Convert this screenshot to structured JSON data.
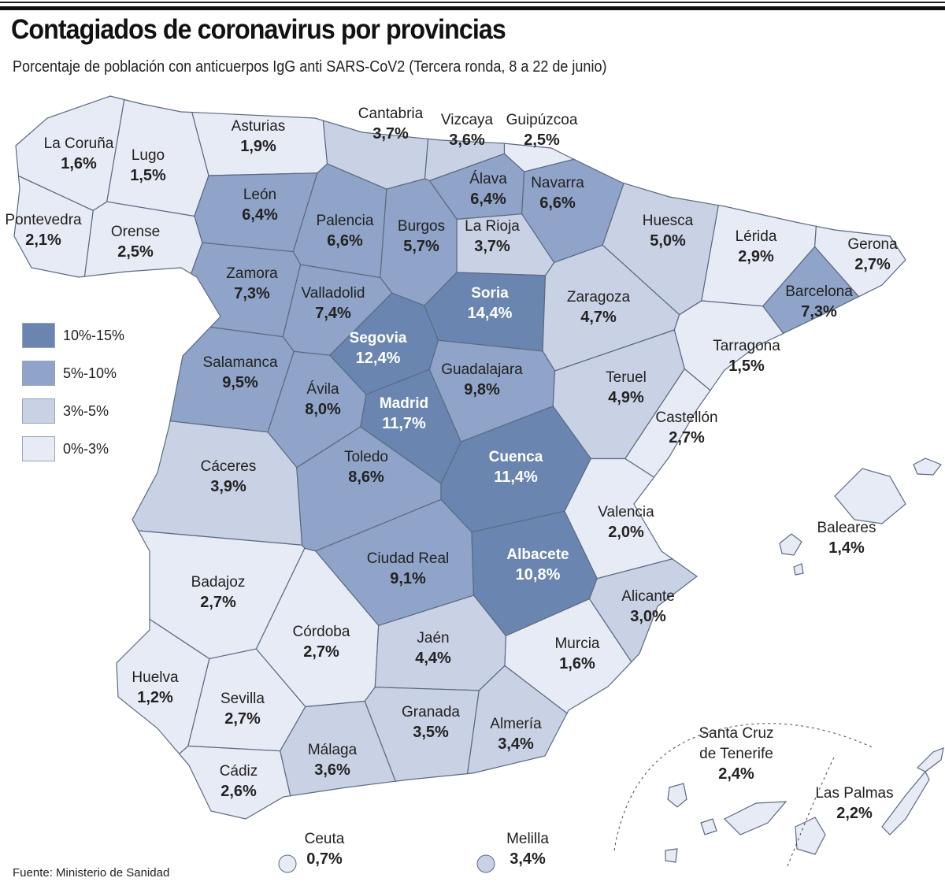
{
  "title": "Contagiados de coronavirus por provincias",
  "subtitle": "Porcentaje de población con anticuerpos IgG anti SARS-CoV2 (Tercera ronda, 8 a 22 de junio)",
  "source": "Fuente: Ministerio de Sanidad",
  "legend": [
    {
      "label": "10%-15%",
      "color": "#6a86b0"
    },
    {
      "label": "5%-10%",
      "color": "#8fa4c8"
    },
    {
      "label": "3%-5%",
      "color": "#c9d1e4"
    },
    {
      "label": "0%-3%",
      "color": "#e7ebf5"
    }
  ],
  "chart_data": {
    "type": "choropleth",
    "unit": "%",
    "provinces": [
      {
        "name": "La Coruña",
        "value": "1,6%",
        "class": 3
      },
      {
        "name": "Lugo",
        "value": "1,5%",
        "class": 3
      },
      {
        "name": "Asturias",
        "value": "1,9%",
        "class": 3
      },
      {
        "name": "Cantabria",
        "value": "3,7%",
        "class": 2
      },
      {
        "name": "Vizcaya",
        "value": "3,6%",
        "class": 2
      },
      {
        "name": "Guipúzcoa",
        "value": "2,5%",
        "class": 3
      },
      {
        "name": "Álava",
        "value": "6,4%",
        "class": 1
      },
      {
        "name": "Navarra",
        "value": "6,6%",
        "class": 1
      },
      {
        "name": "La Rioja",
        "value": "3,7%",
        "class": 2
      },
      {
        "name": "León",
        "value": "6,4%",
        "class": 1
      },
      {
        "name": "Palencia",
        "value": "6,6%",
        "class": 1
      },
      {
        "name": "Burgos",
        "value": "5,7%",
        "class": 1
      },
      {
        "name": "Pontevedra",
        "value": "2,1%",
        "class": 3
      },
      {
        "name": "Orense",
        "value": "2,5%",
        "class": 3
      },
      {
        "name": "Zamora",
        "value": "7,3%",
        "class": 1
      },
      {
        "name": "Valladolid",
        "value": "7,4%",
        "class": 1
      },
      {
        "name": "Soria",
        "value": "14,4%",
        "class": 0
      },
      {
        "name": "Segovia",
        "value": "12,4%",
        "class": 0
      },
      {
        "name": "Huesca",
        "value": "5,0%",
        "class": 2
      },
      {
        "name": "Lérida",
        "value": "2,9%",
        "class": 3
      },
      {
        "name": "Gerona",
        "value": "2,7%",
        "class": 3
      },
      {
        "name": "Barcelona",
        "value": "7,3%",
        "class": 1
      },
      {
        "name": "Zaragoza",
        "value": "4,7%",
        "class": 2
      },
      {
        "name": "Tarragona",
        "value": "1,5%",
        "class": 3
      },
      {
        "name": "Salamanca",
        "value": "9,5%",
        "class": 1
      },
      {
        "name": "Ávila",
        "value": "8,0%",
        "class": 1
      },
      {
        "name": "Madrid",
        "value": "11,7%",
        "class": 0
      },
      {
        "name": "Guadalajara",
        "value": "9,8%",
        "class": 1
      },
      {
        "name": "Teruel",
        "value": "4,9%",
        "class": 2
      },
      {
        "name": "Castellón",
        "value": "2,7%",
        "class": 3
      },
      {
        "name": "Cáceres",
        "value": "3,9%",
        "class": 2
      },
      {
        "name": "Toledo",
        "value": "8,6%",
        "class": 1
      },
      {
        "name": "Cuenca",
        "value": "11,4%",
        "class": 0
      },
      {
        "name": "Valencia",
        "value": "2,0%",
        "class": 3
      },
      {
        "name": "Badajoz",
        "value": "2,7%",
        "class": 3
      },
      {
        "name": "Ciudad Real",
        "value": "9,1%",
        "class": 1
      },
      {
        "name": "Albacete",
        "value": "10,8%",
        "class": 0
      },
      {
        "name": "Alicante",
        "value": "3,0%",
        "class": 2
      },
      {
        "name": "Córdoba",
        "value": "2,7%",
        "class": 3
      },
      {
        "name": "Jaén",
        "value": "4,4%",
        "class": 2
      },
      {
        "name": "Murcia",
        "value": "1,6%",
        "class": 3
      },
      {
        "name": "Huelva",
        "value": "1,2%",
        "class": 3
      },
      {
        "name": "Sevilla",
        "value": "2,7%",
        "class": 3
      },
      {
        "name": "Granada",
        "value": "3,5%",
        "class": 2
      },
      {
        "name": "Almería",
        "value": "3,4%",
        "class": 2
      },
      {
        "name": "Málaga",
        "value": "3,6%",
        "class": 2
      },
      {
        "name": "Cádiz",
        "value": "2,6%",
        "class": 3
      },
      {
        "name": "Baleares",
        "value": "1,4%",
        "class": 3
      },
      {
        "name": "Santa Cruz de Tenerife",
        "value": "2,4%",
        "class": 3
      },
      {
        "name": "Las Palmas",
        "value": "2,2%",
        "class": 3
      },
      {
        "name": "Ceuta",
        "value": "0,7%",
        "class": 3
      },
      {
        "name": "Melilla",
        "value": "3,4%",
        "class": 2
      }
    ]
  }
}
